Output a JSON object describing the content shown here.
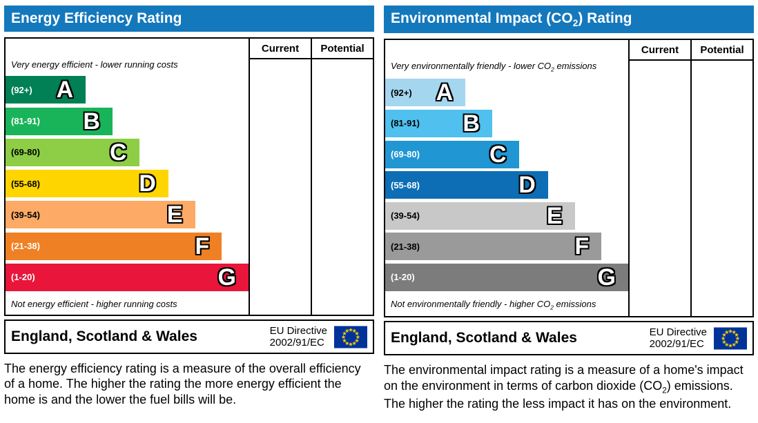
{
  "colors": {
    "header_bg": "#1478bd",
    "border": "#000000",
    "eu_flag_blue": "#003399",
    "eu_flag_yellow": "#ffcc00"
  },
  "left": {
    "title": "Energy Efficiency Rating",
    "columns": {
      "current": "Current",
      "potential": "Potential"
    },
    "top_note": "Very energy efficient - lower running costs",
    "bottom_note": "Not energy efficient - higher running costs",
    "bands": [
      {
        "letter": "A",
        "range": "(92+)",
        "color": "#008054",
        "width_pct": 33,
        "range_color": "#ffffff"
      },
      {
        "letter": "B",
        "range": "(81-91)",
        "color": "#19b459",
        "width_pct": 44,
        "range_color": "#ffffff"
      },
      {
        "letter": "C",
        "range": "(69-80)",
        "color": "#8dce46",
        "width_pct": 55,
        "range_color": "#000000"
      },
      {
        "letter": "D",
        "range": "(55-68)",
        "color": "#ffd500",
        "width_pct": 67,
        "range_color": "#000000"
      },
      {
        "letter": "E",
        "range": "(39-54)",
        "color": "#fcaa65",
        "width_pct": 78,
        "range_color": "#000000"
      },
      {
        "letter": "F",
        "range": "(21-38)",
        "color": "#ef8023",
        "width_pct": 89,
        "range_color": "#ffffff"
      },
      {
        "letter": "G",
        "range": "(1-20)",
        "color": "#e9153b",
        "width_pct": 100,
        "range_color": "#ffffff"
      }
    ],
    "footer": {
      "region": "England, Scotland & Wales",
      "directive_line1": "EU Directive",
      "directive_line2": "2002/91/EC"
    },
    "description": "The energy efficiency rating is a measure of the overall efficiency of a home. The higher the rating the more energy efficient the home is and the lower the fuel bills will be."
  },
  "right": {
    "title": {
      "prefix": "Environmental Impact (CO",
      "sub": "2",
      "suffix": ") Rating"
    },
    "columns": {
      "current": "Current",
      "potential": "Potential"
    },
    "top_note": {
      "prefix": "Very environmentally friendly - lower CO",
      "sub": "2",
      "suffix": " emissions"
    },
    "bottom_note": {
      "prefix": "Not environmentally friendly - higher CO",
      "sub": "2",
      "suffix": " emissions"
    },
    "bands": [
      {
        "letter": "A",
        "range": "(92+)",
        "color": "#a5d6f0",
        "width_pct": 33,
        "range_color": "#000000"
      },
      {
        "letter": "B",
        "range": "(81-91)",
        "color": "#50c0ee",
        "width_pct": 44,
        "range_color": "#000000"
      },
      {
        "letter": "C",
        "range": "(69-80)",
        "color": "#2096d3",
        "width_pct": 55,
        "range_color": "#ffffff"
      },
      {
        "letter": "D",
        "range": "(55-68)",
        "color": "#0d6eb5",
        "width_pct": 67,
        "range_color": "#ffffff"
      },
      {
        "letter": "E",
        "range": "(39-54)",
        "color": "#c8c8c8",
        "width_pct": 78,
        "range_color": "#000000"
      },
      {
        "letter": "F",
        "range": "(21-38)",
        "color": "#9a9a9a",
        "width_pct": 89,
        "range_color": "#000000"
      },
      {
        "letter": "G",
        "range": "(1-20)",
        "color": "#7c7c7c",
        "width_pct": 100,
        "range_color": "#ffffff"
      }
    ],
    "footer": {
      "region": "England, Scotland & Wales",
      "directive_line1": "EU Directive",
      "directive_line2": "2002/91/EC"
    },
    "description": {
      "prefix": "The environmental impact rating is a measure of a home's impact on the environment in terms of carbon dioxide (CO",
      "sub": "2",
      "suffix": ") emissions. The higher the rating the less impact it has on the environment."
    }
  },
  "chart_data": [
    {
      "type": "bar",
      "orientation": "horizontal",
      "title": "Energy Efficiency Rating",
      "categories": [
        "A",
        "B",
        "C",
        "D",
        "E",
        "F",
        "G"
      ],
      "band_ranges": [
        "92+",
        "81-91",
        "69-80",
        "55-68",
        "39-54",
        "21-38",
        "1-20"
      ],
      "bar_width_pct": [
        33,
        44,
        55,
        67,
        78,
        89,
        100
      ],
      "colors": [
        "#008054",
        "#19b459",
        "#8dce46",
        "#ffd500",
        "#fcaa65",
        "#ef8023",
        "#e9153b"
      ],
      "top_annotation": "Very energy efficient - lower running costs",
      "bottom_annotation": "Not energy efficient - higher running costs",
      "columns": [
        "Current",
        "Potential"
      ],
      "current": null,
      "potential": null,
      "footer_left": "England, Scotland & Wales",
      "footer_right": "EU Directive 2002/91/EC"
    },
    {
      "type": "bar",
      "orientation": "horizontal",
      "title": "Environmental Impact (CO2) Rating",
      "categories": [
        "A",
        "B",
        "C",
        "D",
        "E",
        "F",
        "G"
      ],
      "band_ranges": [
        "92+",
        "81-91",
        "69-80",
        "55-68",
        "39-54",
        "21-38",
        "1-20"
      ],
      "bar_width_pct": [
        33,
        44,
        55,
        67,
        78,
        89,
        100
      ],
      "colors": [
        "#a5d6f0",
        "#50c0ee",
        "#2096d3",
        "#0d6eb5",
        "#c8c8c8",
        "#9a9a9a",
        "#7c7c7c"
      ],
      "top_annotation": "Very environmentally friendly - lower CO2 emissions",
      "bottom_annotation": "Not environmentally friendly - higher CO2 emissions",
      "columns": [
        "Current",
        "Potential"
      ],
      "current": null,
      "potential": null,
      "footer_left": "England, Scotland & Wales",
      "footer_right": "EU Directive 2002/91/EC"
    }
  ]
}
